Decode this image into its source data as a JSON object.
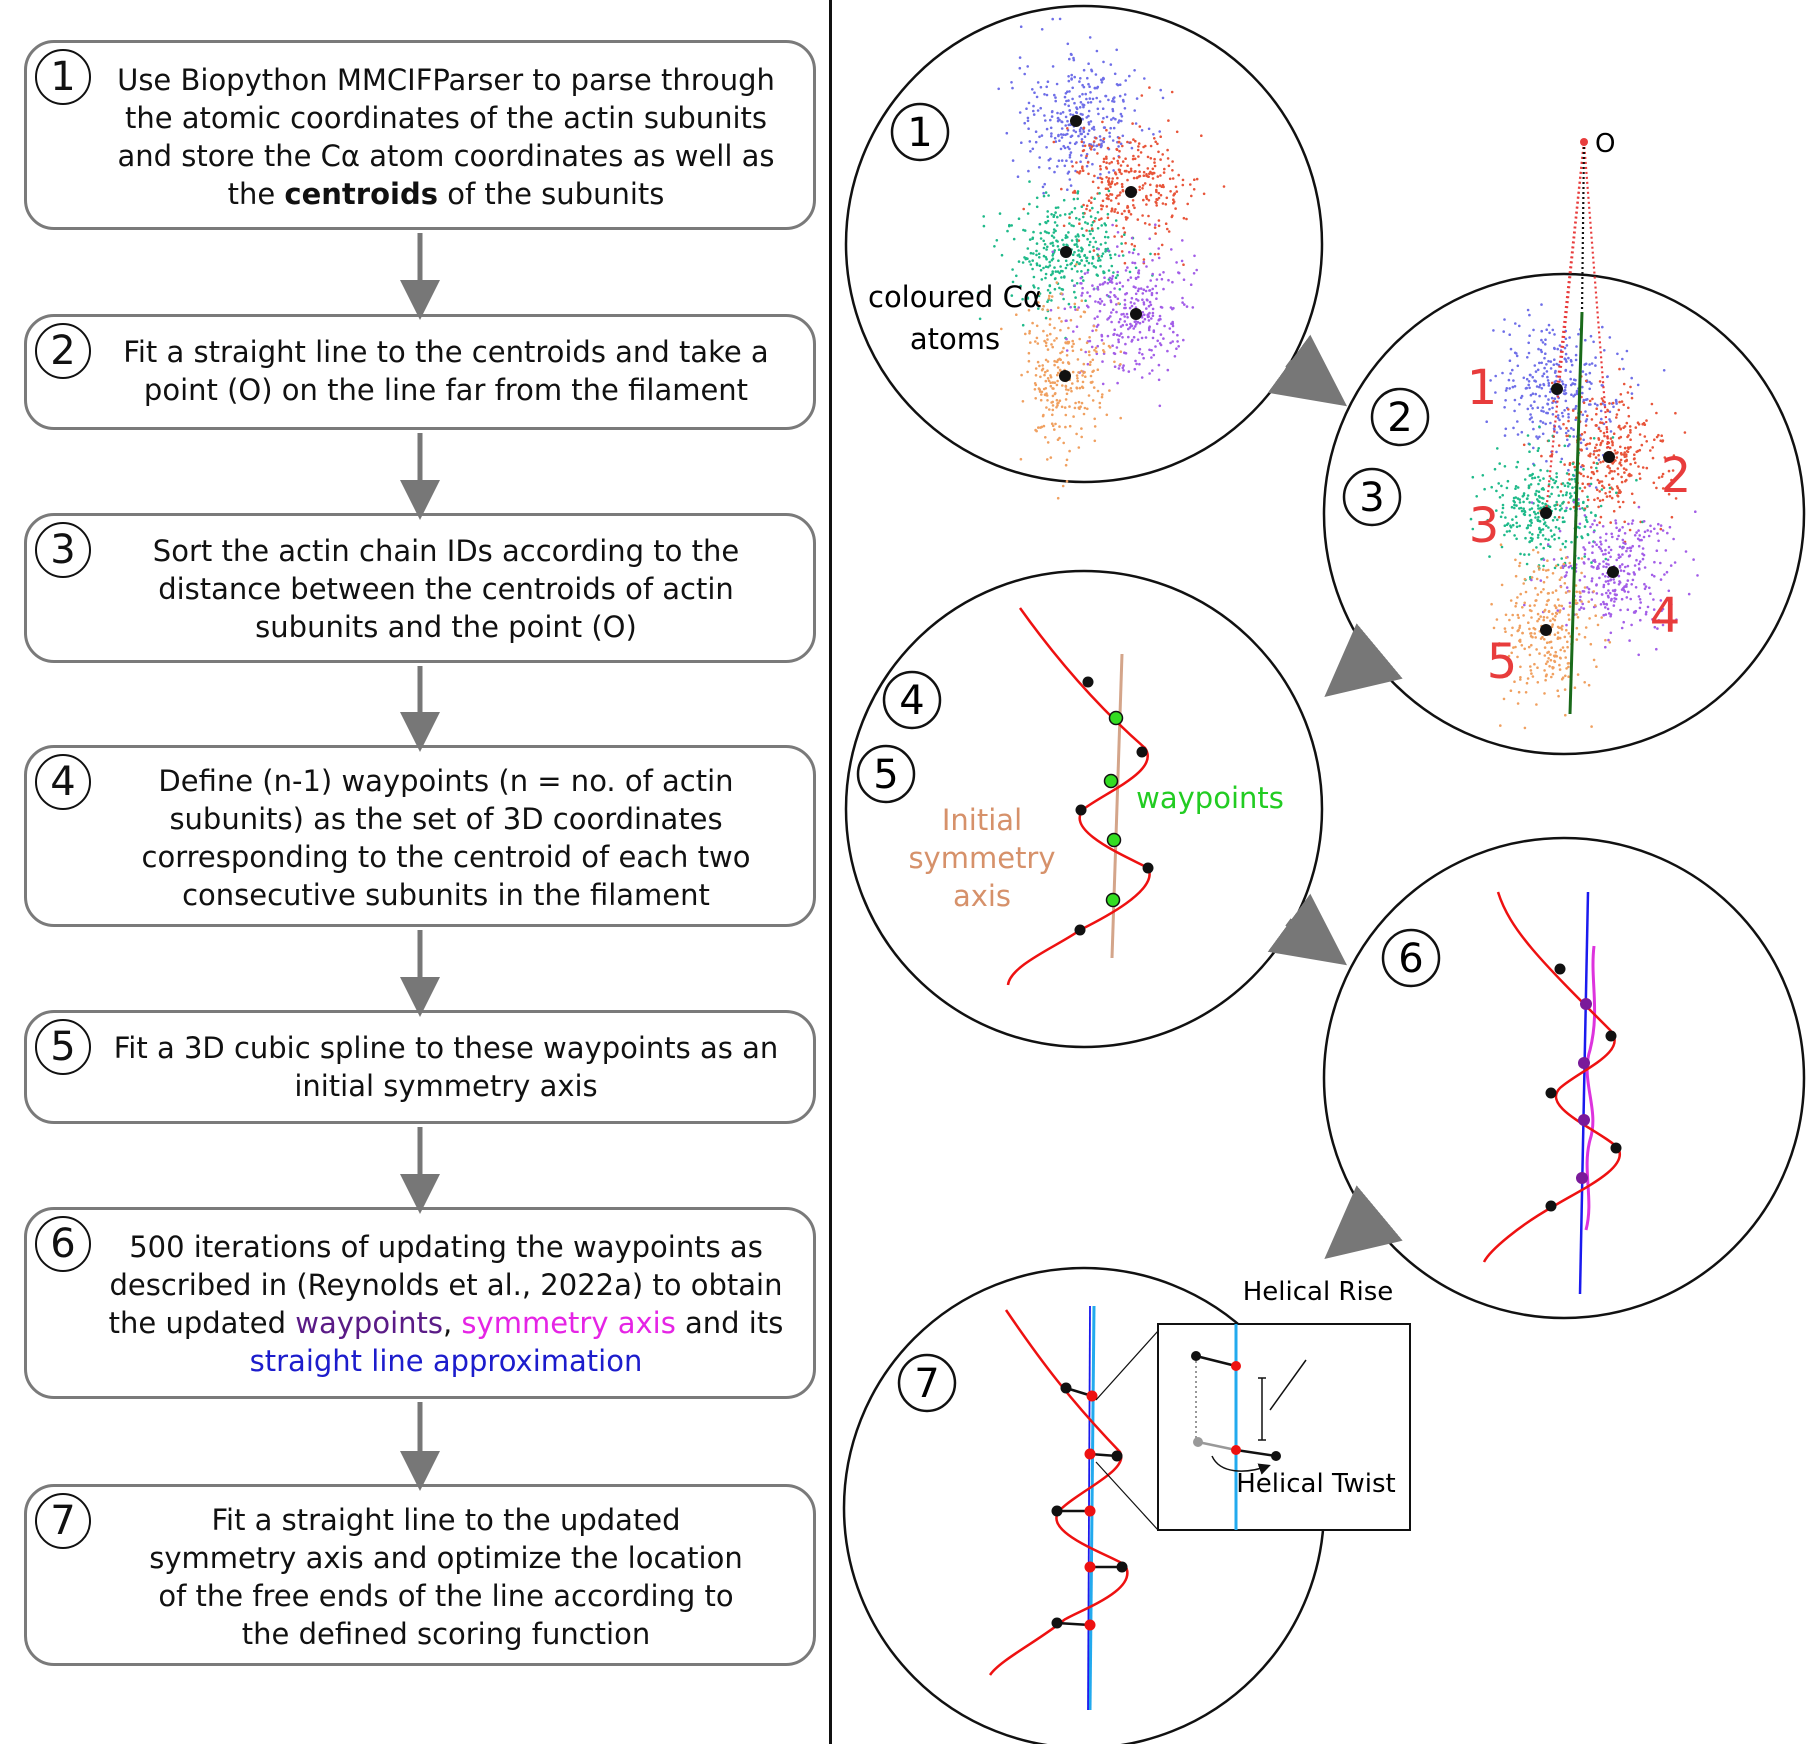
{
  "steps": [
    {
      "num": "1",
      "line1": "Use Biopython MMCIFParser to parse through",
      "line2": "the atomic coordinates of the actin subunits",
      "line3": "and store the Cα atom coordinates as well as",
      "line4_pre": "the ",
      "line4_bold": "centroids",
      "line4_post": " of the subunits"
    },
    {
      "num": "2",
      "line1": "Fit a straight line to the centroids and take a",
      "line2": "point (O) on the line far from the filament"
    },
    {
      "num": "3",
      "line1": "Sort the actin chain IDs according to the",
      "line2": "distance between the centroids of actin",
      "line3": "subunits and the point (O)"
    },
    {
      "num": "4",
      "line1": "Define (n-1) waypoints (n = no. of actin",
      "line2": "subunits) as the set of 3D coordinates",
      "line3": "corresponding to the centroid of each two",
      "line4": "consecutive subunits in the filament"
    },
    {
      "num": "5",
      "line1": "Fit a 3D cubic spline to these waypoints as an",
      "line2": "initial symmetry axis"
    },
    {
      "num": "6",
      "line1": "500 iterations of updating the waypoints as",
      "line2": "described in (Reynolds et al., 2022a) to obtain",
      "line3_pre": "the updated ",
      "line3_purple": "waypoints",
      "line3_mid": ", ",
      "line3_magenta": "symmetry axis",
      "line3_post": " and its",
      "line4_blue": "straight line approximation"
    },
    {
      "num": "7",
      "line1": "Fit a straight line to the updated",
      "line2": "symmetry axis and optimize the location",
      "line3": "of the free ends of the line according to",
      "line4": "the defined scoring function"
    }
  ],
  "panels": {
    "p1": {
      "num": "1",
      "label1": "coloured Cα",
      "label2": "atoms"
    },
    "p23": {
      "num_a": "2",
      "num_b": "3",
      "point_label": "O",
      "sub1": "1",
      "sub2": "2",
      "sub3": "3",
      "sub4": "4",
      "sub5": "5"
    },
    "p45": {
      "num_a": "4",
      "num_b": "5",
      "axis1": "Initial",
      "axis2": "symmetry",
      "axis3": "axis",
      "waypoints": "waypoints"
    },
    "p6": {
      "num": "6"
    },
    "p7": {
      "num": "7",
      "rise": "Helical Rise",
      "twist": "Helical Twist"
    }
  },
  "colors": {
    "blue_atoms": "#6f6fe8",
    "red_atoms": "#e8553a",
    "green_atoms": "#1fba8a",
    "purple_atoms": "#a35ee8",
    "orange_atoms": "#f0a060",
    "curve": "#ee1111",
    "waypoint_green": "#33dd22",
    "initial_axis": "#d4a58a",
    "axis_blue": "#1a1aee",
    "axis_cyan": "#22aaee",
    "axis_magenta": "#dd33dd",
    "waypoint_purple": "#7a1a9a",
    "red_label": "#e83c3c",
    "peach_label": "#d6916a"
  }
}
